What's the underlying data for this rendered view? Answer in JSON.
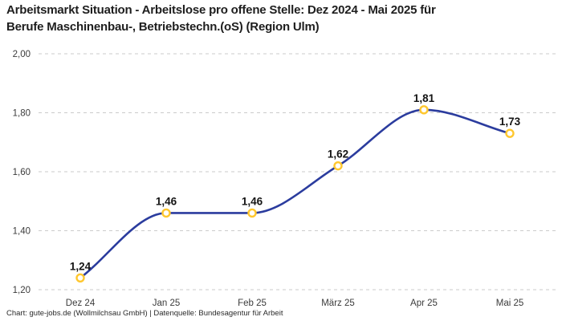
{
  "header": {
    "title_line1": "Arbeitsmarkt Situation - Arbeitslose pro offene Stelle: Dez 2024 - Mai 2025 für",
    "title_line2": "Berufe Maschinenbau-, Betriebstechn.(oS) (Region Ulm)"
  },
  "footer": {
    "text": "Chart: gute-jobs.de (Wollmilchsau GmbH) | Datenquelle: Bundesagentur für Arbeit"
  },
  "chart_data": {
    "type": "line",
    "title": "Arbeitsmarkt Situation - Arbeitslose pro offene Stelle: Dez 2024 - Mai 2025 für Berufe Maschinenbau-, Betriebstechn.(oS) (Region Ulm)",
    "categories": [
      "Dez 24",
      "Jan 25",
      "Feb 25",
      "März 25",
      "Apr 25",
      "Mai 25"
    ],
    "values": [
      1.24,
      1.46,
      1.46,
      1.62,
      1.81,
      1.73
    ],
    "value_labels": [
      "1,24",
      "1,46",
      "1,46",
      "1,62",
      "1,81",
      "1,73"
    ],
    "y_ticks": [
      2.0,
      1.8,
      1.6,
      1.4,
      1.2
    ],
    "y_tick_labels": [
      "2,00",
      "1,80",
      "1,60",
      "1,40",
      "1,20"
    ],
    "ylim": [
      1.2,
      2.0
    ],
    "xlabel": "",
    "ylabel": "",
    "grid": "horizontal-dashed",
    "legend": "none",
    "curve": "smooth-monotone",
    "colors": {
      "line": "#2b3c9e",
      "marker_stroke": "#ffc72e",
      "marker_fill": "#ffffff",
      "grid": "#cbcbcb",
      "axis_text": "#3b3b3b",
      "value_label": "#141414"
    },
    "source": "Chart: gute-jobs.de (Wollmilchsau GmbH) | Datenquelle: Bundesagentur für Arbeit"
  }
}
